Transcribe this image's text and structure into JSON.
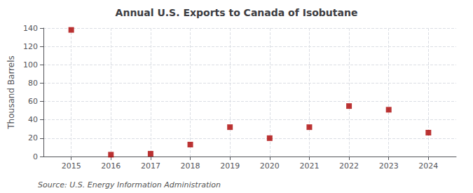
{
  "chart_data": {
    "type": "scatter",
    "title": "Annual U.S. Exports to Canada of Isobutane",
    "ylabel": "Thousand Barrels",
    "annotation": "Source: U.S. Energy Information Administration",
    "x": [
      2015,
      2016,
      2017,
      2018,
      2019,
      2020,
      2021,
      2022,
      2023,
      2024
    ],
    "values": [
      138,
      2,
      3,
      13,
      32,
      20,
      32,
      55,
      51,
      26
    ],
    "color": "#aa0000",
    "marker": "square",
    "xlim": [
      2014.3,
      2024.7
    ],
    "xticks": [
      2015,
      2016,
      2017,
      2018,
      2019,
      2020,
      2021,
      2022,
      2023,
      2024
    ],
    "ylim": [
      0,
      140
    ],
    "yticks": [
      0,
      20,
      40,
      60,
      80,
      100,
      120,
      140
    ],
    "grid": true
  }
}
